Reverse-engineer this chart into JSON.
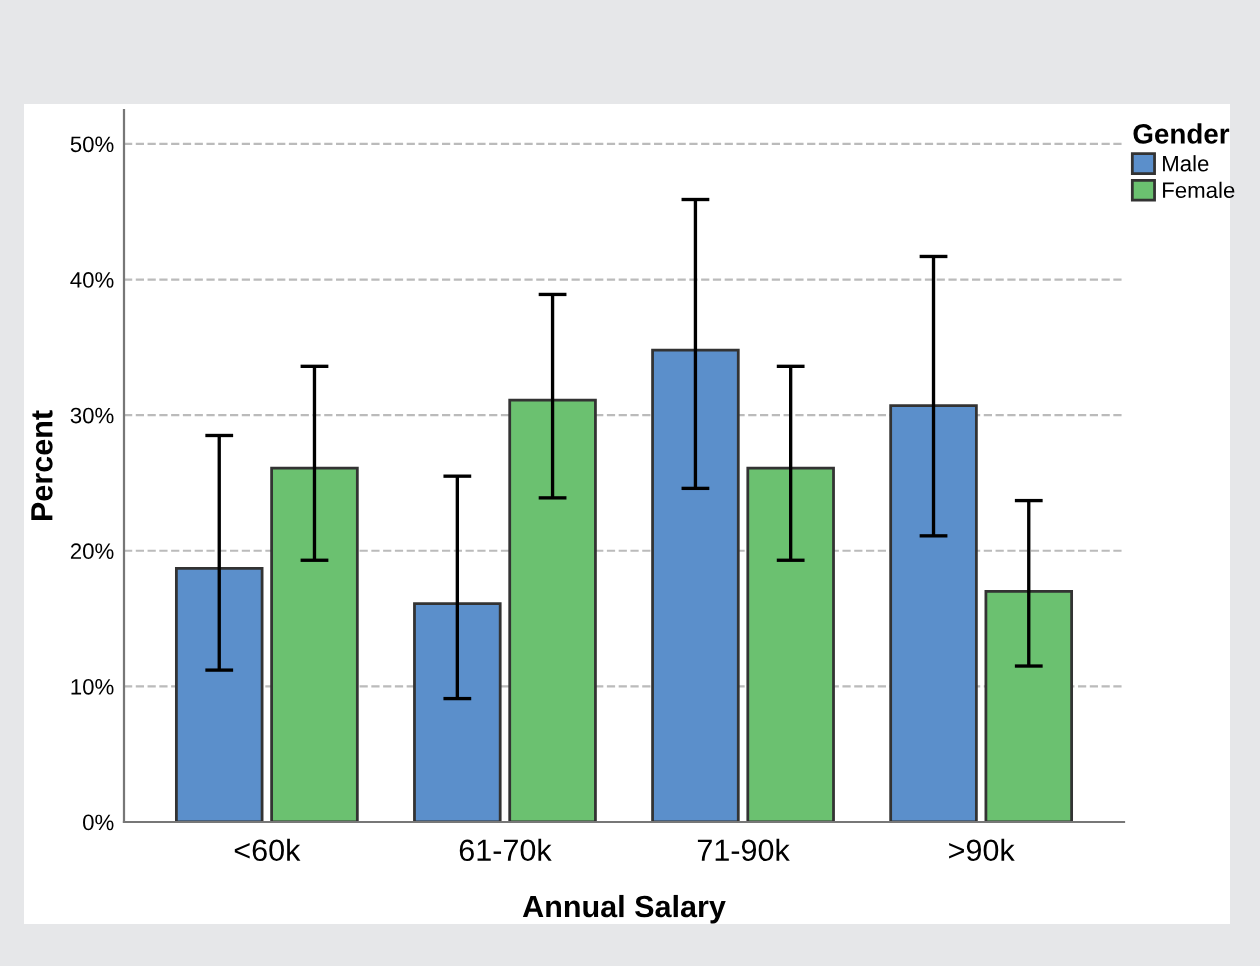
{
  "chart_data": {
    "type": "bar",
    "xlabel": "Annual Salary",
    "ylabel": "Percent",
    "legend_title": "Gender",
    "legend": "top right",
    "grid": "y",
    "categories": [
      "<60k",
      "61-70k",
      "71-90k",
      ">90k"
    ],
    "ylim": [
      0,
      52.5
    ],
    "yticks": [
      {
        "value": 0,
        "label": "0%"
      },
      {
        "value": 10,
        "label": "10%"
      },
      {
        "value": 20,
        "label": "20%"
      },
      {
        "value": 30,
        "label": "30%"
      },
      {
        "value": 40,
        "label": "40%"
      },
      {
        "value": 50,
        "label": "50%"
      }
    ],
    "series": [
      {
        "name": "Male",
        "color": "#5b8fcb",
        "values": [
          18.7,
          16.1,
          34.8,
          30.7
        ],
        "errors": [
          [
            11.2,
            28.5
          ],
          [
            9.1,
            25.5
          ],
          [
            24.6,
            45.9
          ],
          [
            21.1,
            41.7
          ]
        ]
      },
      {
        "name": "Female",
        "color": "#6bc170",
        "values": [
          26.1,
          31.1,
          26.1,
          17.0
        ],
        "errors": [
          [
            19.3,
            33.6
          ],
          [
            23.9,
            38.9
          ],
          [
            19.3,
            33.6
          ],
          [
            11.5,
            23.7
          ]
        ]
      }
    ]
  }
}
